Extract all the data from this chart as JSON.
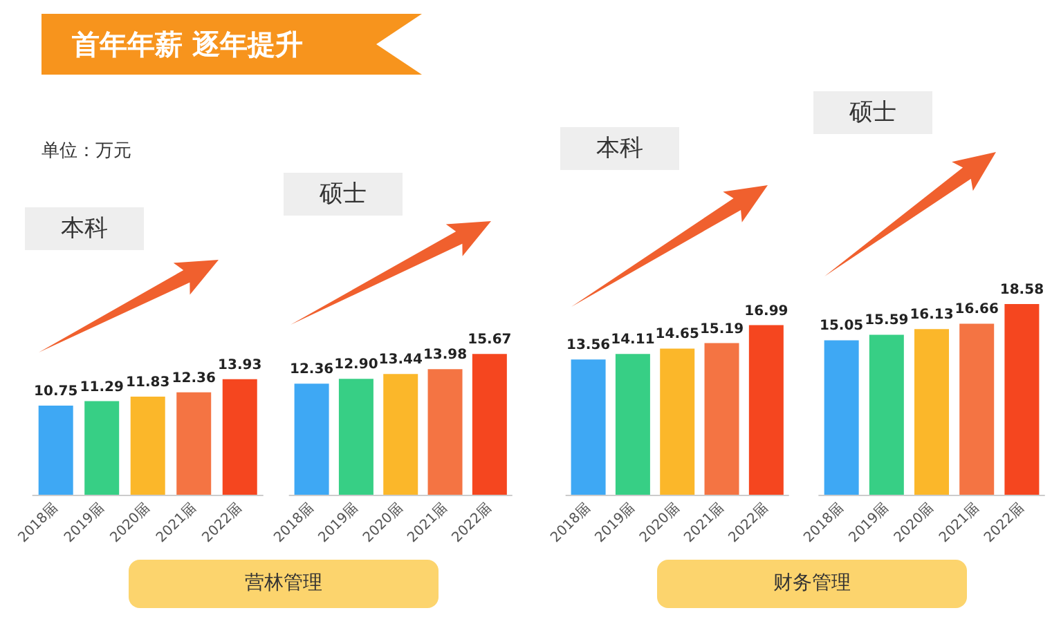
{
  "chart_data": [
    {
      "type": "bar",
      "title": "本科",
      "annotations": [
        "首年年薪  逐年提升",
        "单位：万元",
        "营林管理"
      ],
      "categories": [
        "2018届",
        "2019届",
        "2020届",
        "2021届",
        "2022届"
      ],
      "values": [
        10.75,
        11.29,
        11.83,
        12.36,
        13.93
      ],
      "value_labels": [
        "10.75",
        "11.29",
        "11.83",
        "12.36",
        "13.93"
      ],
      "colors": [
        "#3ea8f4",
        "#37cf85",
        "#fbb72a",
        "#f47443",
        "#f5461f"
      ]
    },
    {
      "type": "bar",
      "title": "硕士",
      "categories": [
        "2018届",
        "2019届",
        "2020届",
        "2021届",
        "2022届"
      ],
      "values": [
        12.36,
        12.9,
        13.44,
        13.98,
        15.67
      ],
      "value_labels": [
        "12.36",
        "12.90",
        "13.44",
        "13.98",
        "15.67"
      ],
      "colors": [
        "#3ea8f4",
        "#37cf85",
        "#fbb72a",
        "#f47443",
        "#f5461f"
      ]
    },
    {
      "type": "bar",
      "title": "本科",
      "annotations": [
        "财务管理"
      ],
      "categories": [
        "2018届",
        "2019届",
        "2020届",
        "2021届",
        "2022届"
      ],
      "values": [
        13.56,
        14.11,
        14.65,
        15.19,
        16.99
      ],
      "value_labels": [
        "13.56",
        "14.11",
        "14.65",
        "15.19",
        "16.99"
      ],
      "colors": [
        "#3ea8f4",
        "#37cf85",
        "#fbb72a",
        "#f47443",
        "#f5461f"
      ]
    },
    {
      "type": "bar",
      "title": "硕士",
      "categories": [
        "2018届",
        "2019届",
        "2020届",
        "2021届",
        "2022届"
      ],
      "values": [
        15.05,
        15.59,
        16.13,
        16.66,
        18.58
      ],
      "value_labels": [
        "15.05",
        "15.59",
        "16.13",
        "16.66",
        "18.58"
      ],
      "colors": [
        "#3ea8f4",
        "#37cf85",
        "#fbb72a",
        "#f47443",
        "#f5461f"
      ]
    }
  ]
}
